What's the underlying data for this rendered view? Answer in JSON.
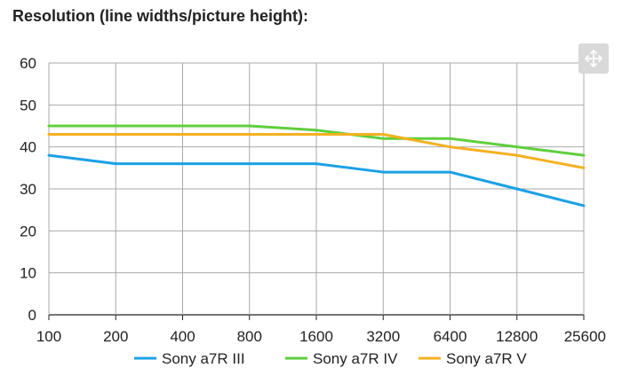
{
  "chart_data": {
    "type": "line",
    "title": "Resolution (line widths/picture height):",
    "categories": [
      "100",
      "200",
      "400",
      "800",
      "1600",
      "3200",
      "6400",
      "12800",
      "25600"
    ],
    "ylim": [
      0,
      60
    ],
    "yticks": [
      0,
      10,
      20,
      30,
      40,
      50,
      60
    ],
    "grid": true,
    "legend_position": "bottom",
    "series": [
      {
        "name": "Sony a7R III",
        "color": "#1ba1e6",
        "values": [
          38,
          36,
          36,
          36,
          36,
          34,
          34,
          30,
          26
        ]
      },
      {
        "name": "Sony a7R IV",
        "color": "#5fcf3c",
        "values": [
          45,
          45,
          45,
          45,
          44,
          42,
          42,
          40,
          38
        ]
      },
      {
        "name": "Sony a7R V",
        "color": "#f4b120",
        "values": [
          43,
          43,
          43,
          43,
          43,
          43,
          40,
          38,
          35
        ]
      }
    ]
  },
  "toolbar": {
    "move_icon": "move-arrows-icon"
  }
}
